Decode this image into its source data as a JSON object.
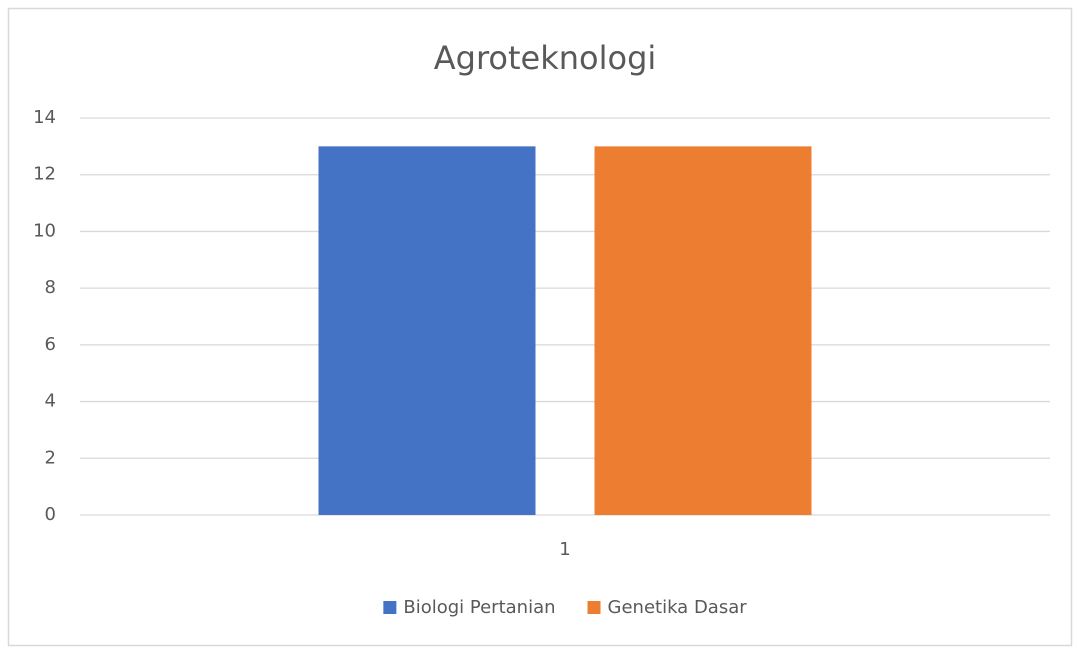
{
  "chart_data": {
    "type": "bar",
    "title": "Agroteknologi",
    "categories": [
      "1"
    ],
    "series": [
      {
        "name": "Biologi Pertanian",
        "color": "#4472c4",
        "values": [
          13
        ]
      },
      {
        "name": "Genetika Dasar",
        "color": "#ed7d31",
        "values": [
          13
        ]
      }
    ],
    "ylim": [
      0,
      14
    ],
    "yticks": [
      0,
      2,
      4,
      6,
      8,
      10,
      12,
      14
    ],
    "grid": true,
    "legend": "bottom"
  }
}
